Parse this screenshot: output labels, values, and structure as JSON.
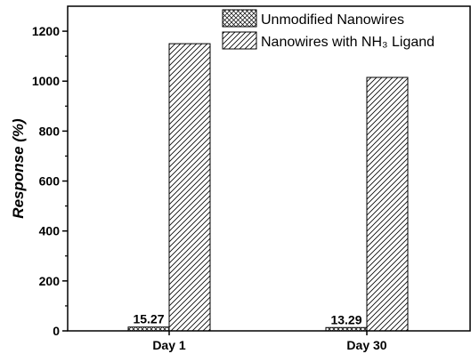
{
  "chart_data": {
    "type": "bar",
    "title": "",
    "xlabel": "",
    "ylabel": "Response (%)",
    "categories": [
      "Day 1",
      "Day 30"
    ],
    "ylim": [
      0,
      1300
    ],
    "yticks": [
      0,
      200,
      400,
      600,
      800,
      1000,
      1200
    ],
    "grid": false,
    "legend_position": "top-right",
    "series": [
      {
        "name": "Unmodified Nanowires",
        "values": [
          15.27,
          13.29
        ],
        "pattern": "crosshatch",
        "labels": [
          "15.27",
          "13.29"
        ]
      },
      {
        "name": "Nanowires with NH₃ Ligand",
        "values": [
          1150,
          1015
        ],
        "pattern": "diagonal"
      }
    ],
    "colors": {
      "stroke": "#000000",
      "fill": "#ffffff"
    }
  }
}
